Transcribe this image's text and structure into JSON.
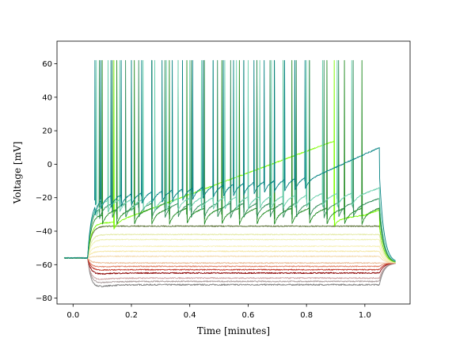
{
  "chart_data": {
    "type": "line",
    "title": "",
    "xlabel": "Time [minutes]",
    "ylabel": "Voltage [mV]",
    "xlim": [
      -0.055,
      1.155
    ],
    "ylim": [
      -83.5,
      73.5
    ],
    "xticks": [
      0.0,
      0.2,
      0.4,
      0.6,
      0.8,
      1.0
    ],
    "xtick_labels": [
      "0.0",
      "0.2",
      "0.4",
      "0.6",
      "0.8",
      "1.0"
    ],
    "yticks": [
      -80,
      -60,
      -40,
      -20,
      0,
      20,
      40,
      60
    ],
    "ytick_labels": [
      "−80",
      "−60",
      "−40",
      "−20",
      "0",
      "20",
      "40",
      "60"
    ],
    "grid": false,
    "legend": "none",
    "stimulus": {
      "onset": 0.05,
      "offset": 1.05,
      "end": 1.1,
      "baseline": -56
    },
    "series": [
      {
        "color": "#808080",
        "kind": "flat",
        "steady": -72,
        "peak": -76,
        "noise": 0.4
      },
      {
        "color": "#a89a9a",
        "kind": "flat",
        "steady": -70,
        "peak": -73,
        "noise": 0.35
      },
      {
        "color": "#c9a0a0",
        "kind": "flat",
        "steady": -68,
        "peak": -71,
        "noise": 0.35
      },
      {
        "color": "#8b0000",
        "kind": "flat",
        "steady": -65,
        "peak": -67,
        "noise": 0.35
      },
      {
        "color": "#c0392b",
        "kind": "flat",
        "steady": -63,
        "peak": -64,
        "noise": 0.3
      },
      {
        "color": "#e07b5f",
        "kind": "flat",
        "steady": -61,
        "peak": -62,
        "noise": 0.3
      },
      {
        "color": "#e8b48a",
        "kind": "flat",
        "steady": -59,
        "peak": -59,
        "noise": 0.3
      },
      {
        "color": "#f2d7a8",
        "kind": "flat",
        "steady": -55,
        "peak": -55,
        "noise": 0.3
      },
      {
        "color": "#f5e6a3",
        "kind": "flat",
        "steady": -52,
        "peak": -52,
        "noise": 0.3
      },
      {
        "color": "#f6efb5",
        "kind": "flat",
        "steady": -49,
        "peak": -49,
        "noise": 0.3
      },
      {
        "color": "#eef0b0",
        "kind": "flat",
        "steady": -45,
        "peak": -45,
        "noise": 0.3
      },
      {
        "color": "#e3e9a4",
        "kind": "flat",
        "steady": -42,
        "peak": -42,
        "noise": 0.3
      },
      {
        "color": "#556b2f",
        "kind": "flat",
        "steady": -37,
        "peak": -37,
        "noise": 0.3
      },
      {
        "color": "#7cfc00",
        "kind": "spiking",
        "base": -31,
        "start": -35,
        "late": -33,
        "spikes": [
          0.14,
          0.895
        ],
        "ahp": 4,
        "drop": -37
      },
      {
        "color": "#228b22",
        "kind": "spiking",
        "base": -27,
        "start": -30,
        "late": -30,
        "spikes": [
          0.1,
          0.15,
          0.21,
          0.27,
          0.33,
          0.39,
          0.45,
          0.51,
          0.57,
          0.63,
          0.69,
          0.75,
          0.81,
          0.87,
          0.93,
          0.99
        ],
        "ahp": 6
      },
      {
        "color": "#2e8b57",
        "kind": "spiking",
        "base": -24,
        "start": -26,
        "late": -26,
        "spikes": [
          0.09,
          0.135,
          0.18,
          0.225,
          0.27,
          0.315,
          0.36,
          0.405,
          0.45,
          0.495,
          0.54,
          0.585,
          0.63,
          0.675,
          0.72,
          0.765,
          0.81,
          0.86,
          0.91,
          0.96
        ],
        "ahp": 6
      },
      {
        "color": "#66cdaa",
        "kind": "spiking",
        "base": -21,
        "start": -24,
        "late": -20,
        "spikes": [
          0.08,
          0.12,
          0.16,
          0.2,
          0.24,
          0.28,
          0.32,
          0.36,
          0.4,
          0.44,
          0.48,
          0.52,
          0.56,
          0.6,
          0.64,
          0.68,
          0.72,
          0.76,
          0.8,
          0.855,
          0.905,
          0.955
        ],
        "ahp": 5
      },
      {
        "color": "#008080",
        "kind": "spiking",
        "base": -18,
        "start": -22,
        "late": -6,
        "spikes": [
          0.075,
          0.095,
          0.13,
          0.165,
          0.2,
          0.235,
          0.27,
          0.305,
          0.34,
          0.375,
          0.41,
          0.445,
          0.48,
          0.515,
          0.55,
          0.585,
          0.62,
          0.655,
          0.69,
          0.725,
          0.76,
          0.795
        ],
        "ahp": 5
      }
    ]
  }
}
